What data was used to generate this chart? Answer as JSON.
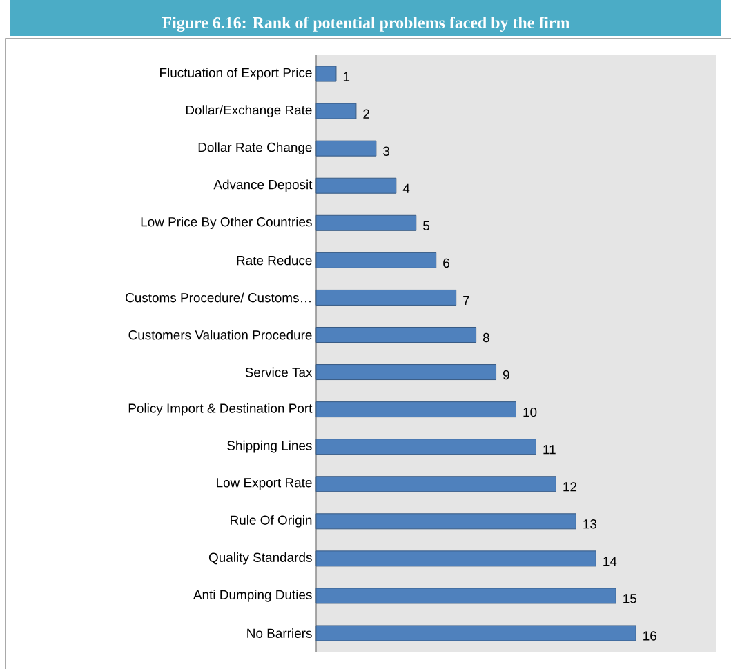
{
  "chart_data": {
    "type": "bar",
    "orientation": "horizontal",
    "title": "Figure 6.16: Rank of potential problems faced by the firm",
    "categories": [
      "Fluctuation of Export Price",
      "Dollar/Exchange Rate",
      "Dollar Rate Change",
      "Advance Deposit",
      "Low Price By Other Countries",
      "Rate Reduce",
      "Customs Procedure/ Customs…",
      "Customers Valuation Procedure",
      "Service Tax",
      "Policy Import & Destination Port",
      "Shipping Lines",
      "Low Export Rate",
      "Rule Of Origin",
      "Quality Standards",
      "Anti Dumping Duties",
      "No Barriers"
    ],
    "values": [
      1,
      2,
      3,
      4,
      5,
      6,
      7,
      8,
      9,
      10,
      11,
      12,
      13,
      14,
      15,
      16
    ],
    "color": "#4f81bd",
    "data_labels": true
  }
}
